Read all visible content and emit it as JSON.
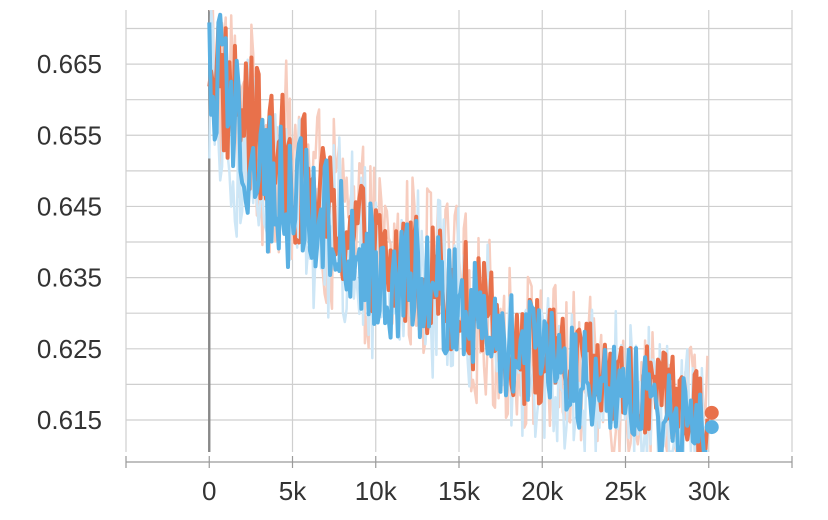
{
  "chart_data": {
    "type": "line",
    "title": "",
    "xlabel": "",
    "ylabel": "",
    "xlim": [
      -5000,
      35000
    ],
    "ylim": [
      0.6105,
      0.6726
    ],
    "grid": true,
    "legend": "none",
    "x_ticks": [
      {
        "value": 0,
        "label": "0"
      },
      {
        "value": 5000,
        "label": "5k"
      },
      {
        "value": 10000,
        "label": "10k"
      },
      {
        "value": 15000,
        "label": "15k"
      },
      {
        "value": 20000,
        "label": "20k"
      },
      {
        "value": 25000,
        "label": "25k"
      },
      {
        "value": 30000,
        "label": "30k"
      }
    ],
    "y_ticks": [
      {
        "value": 0.665,
        "label": "0.665"
      },
      {
        "value": 0.655,
        "label": "0.655"
      },
      {
        "value": 0.645,
        "label": "0.645"
      },
      {
        "value": 0.635,
        "label": "0.635"
      },
      {
        "value": 0.625,
        "label": "0.625"
      },
      {
        "value": 0.615,
        "label": "0.615"
      }
    ],
    "minor_y_gridlines": [
      0.67,
      0.66,
      0.65,
      0.64,
      0.63,
      0.62
    ],
    "series": [
      {
        "color": "#e8714b",
        "raw_color": "#f7cdbf",
        "x": [
          0,
          1000,
          2000,
          3000,
          4000,
          5000,
          6000,
          7000,
          8000,
          9000,
          10000,
          11000,
          12000,
          13000,
          14000,
          15000,
          16000,
          17000,
          18000,
          19000,
          20000,
          21000,
          22000,
          23000,
          24000,
          25000,
          26000,
          27000,
          28000,
          29000,
          30000
        ],
        "values": [
          0.668,
          0.661,
          0.658,
          0.654,
          0.652,
          0.65,
          0.648,
          0.644,
          0.642,
          0.64,
          0.638,
          0.636,
          0.637,
          0.636,
          0.634,
          0.633,
          0.63,
          0.628,
          0.626,
          0.625,
          0.624,
          0.623,
          0.622,
          0.621,
          0.62,
          0.619,
          0.619,
          0.618,
          0.617,
          0.6165,
          0.616
        ]
      },
      {
        "color": "#5ab0e2",
        "raw_color": "#cde6f6",
        "x": [
          0,
          1000,
          2000,
          3000,
          4000,
          5000,
          6000,
          7000,
          8000,
          9000,
          10000,
          11000,
          12000,
          13000,
          14000,
          15000,
          16000,
          17000,
          18000,
          19000,
          20000,
          21000,
          22000,
          23000,
          24000,
          25000,
          26000,
          27000,
          28000,
          29000,
          30000
        ],
        "values": [
          0.667,
          0.659,
          0.654,
          0.65,
          0.647,
          0.645,
          0.646,
          0.642,
          0.641,
          0.639,
          0.637,
          0.635,
          0.637,
          0.634,
          0.633,
          0.632,
          0.631,
          0.627,
          0.625,
          0.624,
          0.623,
          0.622,
          0.621,
          0.62,
          0.62,
          0.619,
          0.618,
          0.617,
          0.616,
          0.615,
          0.614
        ]
      }
    ]
  }
}
